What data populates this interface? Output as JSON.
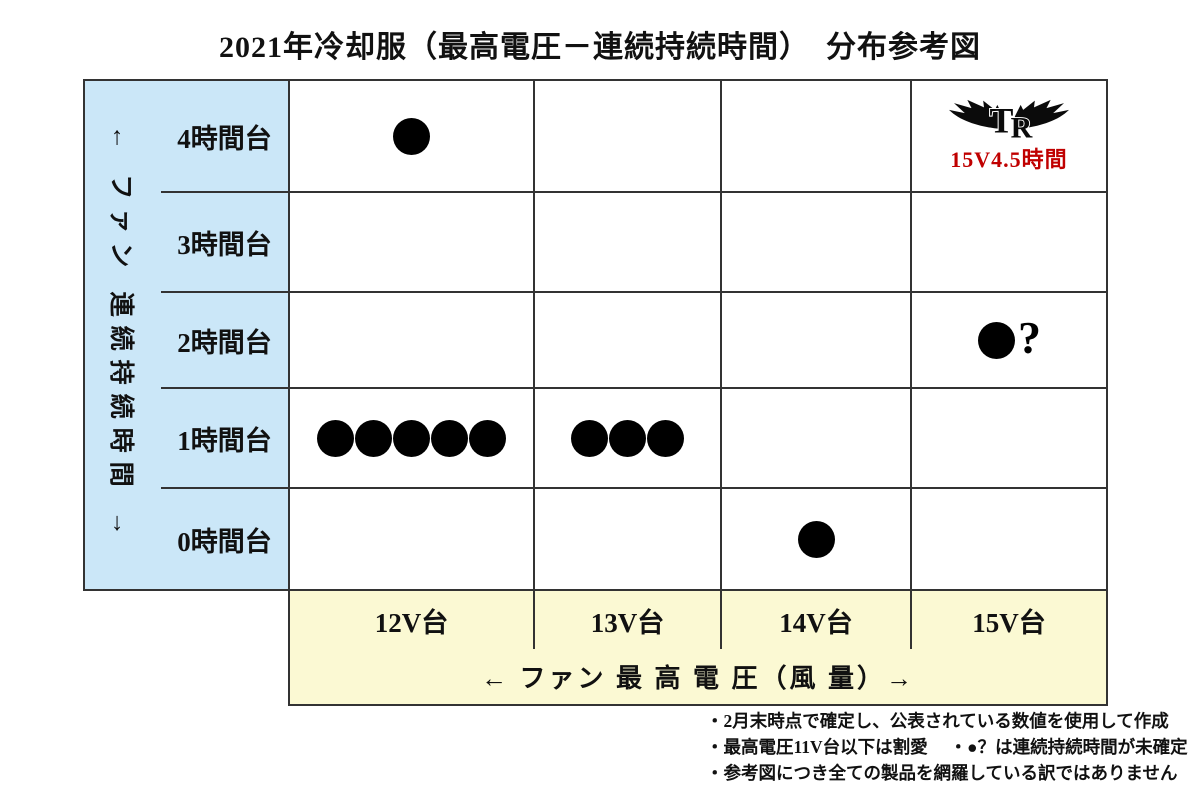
{
  "title": "2021年冷却服（最高電圧－連続持続時間）　分布参考図",
  "y_axis": {
    "label": "← ファン 連続持続時間 →"
  },
  "x_axis": {
    "label": "← ファン 最 高 電 圧（風 量）→"
  },
  "chart_data": {
    "type": "scatter",
    "title": "2021年冷却服（最高電圧－連続持続時間）　分布参考図",
    "x_categories": [
      "12V台",
      "13V台",
      "14V台",
      "15V台"
    ],
    "y_categories": [
      "4時間台",
      "3時間台",
      "2時間台",
      "1時間台",
      "0時間台"
    ],
    "marker_glyph": "●",
    "question_glyph": "?",
    "grid": true,
    "points": [
      {
        "row": "4時間台",
        "col": "12V台",
        "marker": "dot",
        "count": 1
      },
      {
        "row": "4時間台",
        "col": "15V台",
        "marker": "tr-logo",
        "label": "15V4.5時間",
        "label_color": "#c00000"
      },
      {
        "row": "2時間台",
        "col": "15V台",
        "marker": "dot-question",
        "count": 1
      },
      {
        "row": "1時間台",
        "col": "12V台",
        "marker": "dot",
        "count": 5
      },
      {
        "row": "1時間台",
        "col": "13V台",
        "marker": "dot",
        "count": 3
      },
      {
        "row": "0時間台",
        "col": "14V台",
        "marker": "dot",
        "count": 1
      }
    ]
  },
  "footnotes": [
    "・2月末時点で確定し、公表されている数値を使用して作成",
    "・最高電圧11V台以下は割愛　 ・●？は連続持続時間が未確定",
    "・参考図につき全ての製品を網羅している訳ではありません"
  ],
  "colors": {
    "accent_red": "#c00000",
    "y_panel_blue": "#cbe7f8",
    "x_panel_yellow": "#fbf9d3",
    "grid_line": "#333333",
    "dot_black": "#000000"
  }
}
